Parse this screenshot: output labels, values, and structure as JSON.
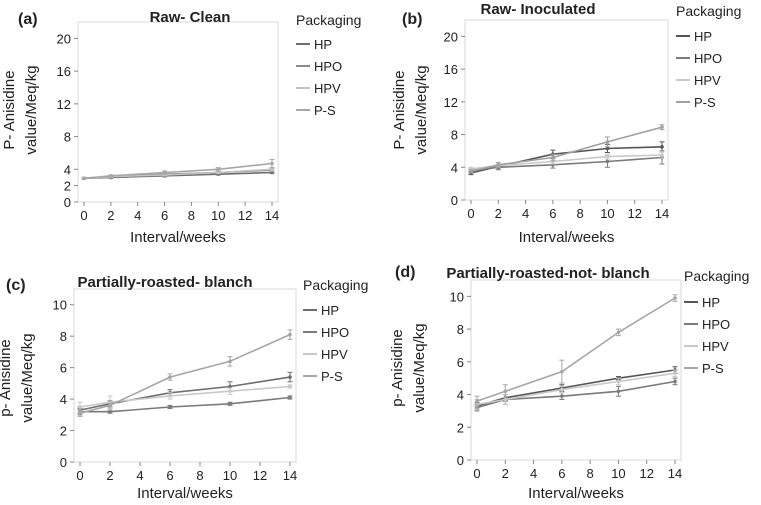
{
  "chart_data": [
    {
      "type": "line",
      "panel_label": "(a)",
      "title": "Raw- Clean",
      "xlabel": "Interval/weeks",
      "ylabel_line1": "P- Anisidine",
      "ylabel_line2": "value/Meq/kg",
      "ylim": [
        0,
        22
      ],
      "yticks": [
        0,
        4,
        8,
        12,
        16,
        20
      ],
      "yticks_extra": [
        2
      ],
      "xticks": [
        0,
        2,
        4,
        6,
        8,
        10,
        12,
        14
      ],
      "x": [
        0,
        2,
        6,
        10,
        14
      ],
      "legend_title": "Packaging",
      "series": [
        {
          "name": "HP",
          "color": "#6e6e6e",
          "values": [
            2.9,
            3.0,
            3.2,
            3.4,
            3.6
          ],
          "err": [
            0.1,
            0.1,
            0.1,
            0.1,
            0.1
          ]
        },
        {
          "name": "HPO",
          "color": "#8c8c8c",
          "values": [
            2.9,
            3.1,
            3.4,
            3.6,
            3.9
          ],
          "err": [
            0.1,
            0.1,
            0.1,
            0.1,
            0.2
          ]
        },
        {
          "name": "HPV",
          "color": "#c2c2c2",
          "values": [
            2.9,
            3.1,
            3.3,
            3.6,
            4.0
          ],
          "err": [
            0.1,
            0.1,
            0.1,
            0.1,
            0.2
          ]
        },
        {
          "name": "P-S",
          "color": "#a6a6a6",
          "values": [
            2.9,
            3.2,
            3.6,
            4.0,
            4.7
          ],
          "err": [
            0.1,
            0.1,
            0.2,
            0.2,
            0.5
          ]
        }
      ]
    },
    {
      "type": "line",
      "panel_label": "(b)",
      "title": "Raw- Inoculated",
      "xlabel": "Interval/weeks",
      "ylabel_line1": "P- Anisidine",
      "ylabel_line2": "value/Meq/kg",
      "ylim": [
        0,
        22
      ],
      "yticks": [
        0,
        4,
        8,
        12,
        16,
        20
      ],
      "yticks_extra": [],
      "xticks": [
        0,
        2,
        4,
        6,
        8,
        10,
        12,
        14
      ],
      "x": [
        0,
        2,
        6,
        10,
        14
      ],
      "legend_title": "Packaging",
      "series": [
        {
          "name": "HP",
          "color": "#555555",
          "values": [
            3.3,
            4.1,
            5.6,
            6.3,
            6.5
          ],
          "err": [
            0.2,
            0.2,
            0.5,
            0.5,
            0.6
          ]
        },
        {
          "name": "HPO",
          "color": "#7a7a7a",
          "values": [
            3.6,
            4.0,
            4.3,
            4.7,
            5.2
          ],
          "err": [
            0.2,
            0.3,
            0.4,
            0.7,
            0.8
          ]
        },
        {
          "name": "HPV",
          "color": "#c8c8c8",
          "values": [
            3.8,
            4.2,
            4.7,
            5.3,
            5.5
          ],
          "err": [
            0.2,
            0.2,
            0.3,
            0.3,
            0.4
          ]
        },
        {
          "name": "P-S",
          "color": "#a0a0a0",
          "values": [
            3.5,
            4.3,
            5.2,
            7.1,
            8.9
          ],
          "err": [
            0.2,
            0.3,
            0.4,
            0.6,
            0.3
          ]
        }
      ]
    },
    {
      "type": "line",
      "panel_label": "(c)",
      "title": "Partially-roasted- blanch",
      "xlabel": "Interval/weeks",
      "ylabel_line1": "p- Anisidine",
      "ylabel_line2": "value/Meq/kg",
      "ylim": [
        0,
        11
      ],
      "yticks": [
        0,
        2,
        4,
        6,
        8,
        10
      ],
      "yticks_extra": [],
      "xticks": [
        0,
        2,
        4,
        6,
        8,
        10,
        12,
        14
      ],
      "x": [
        0,
        2,
        6,
        10,
        14
      ],
      "legend_title": "Packaging",
      "series": [
        {
          "name": "HP",
          "color": "#6e6e6e",
          "values": [
            3.3,
            3.7,
            4.4,
            4.8,
            5.4
          ],
          "err": [
            0.2,
            0.2,
            0.2,
            0.3,
            0.3
          ]
        },
        {
          "name": "HPO",
          "color": "#7a7a7a",
          "values": [
            3.2,
            3.2,
            3.5,
            3.7,
            4.1
          ],
          "err": [
            0.2,
            0.1,
            0.1,
            0.1,
            0.1
          ]
        },
        {
          "name": "HPV",
          "color": "#c8c8c8",
          "values": [
            3.5,
            3.8,
            4.2,
            4.5,
            4.8
          ],
          "err": [
            0.3,
            0.4,
            0.2,
            0.2,
            0.1
          ]
        },
        {
          "name": "P-S",
          "color": "#a6a6a6",
          "values": [
            3.1,
            3.6,
            5.4,
            6.4,
            8.1
          ],
          "err": [
            0.2,
            0.3,
            0.2,
            0.3,
            0.3
          ]
        }
      ]
    },
    {
      "type": "line",
      "panel_label": "(d)",
      "title": "Partially-roasted-not- blanch",
      "xlabel": "Interval/weeks",
      "ylabel_line1": "p- Anisidine",
      "ylabel_line2": "value/Meq/kg",
      "ylim": [
        0,
        11
      ],
      "yticks": [
        0,
        2,
        4,
        6,
        8,
        10
      ],
      "yticks_extra": [],
      "xticks": [
        0,
        2,
        4,
        6,
        8,
        10,
        12,
        14
      ],
      "x": [
        0,
        2,
        6,
        10,
        14
      ],
      "legend_title": "Packaging",
      "series": [
        {
          "name": "HP",
          "color": "#555555",
          "values": [
            3.3,
            3.8,
            4.4,
            5.0,
            5.5
          ],
          "err": [
            0.2,
            0.2,
            0.2,
            0.1,
            0.2
          ]
        },
        {
          "name": "HPO",
          "color": "#7a7a7a",
          "values": [
            3.2,
            3.7,
            3.9,
            4.2,
            4.8
          ],
          "err": [
            0.2,
            0.3,
            0.2,
            0.3,
            0.2
          ]
        },
        {
          "name": "HPV",
          "color": "#c8c8c8",
          "values": [
            3.4,
            3.7,
            4.3,
            4.8,
            5.3
          ],
          "err": [
            0.3,
            0.3,
            0.2,
            0.2,
            0.2
          ]
        },
        {
          "name": "P-S",
          "color": "#a6a6a6",
          "values": [
            3.6,
            4.2,
            5.4,
            7.8,
            9.9
          ],
          "err": [
            0.3,
            0.4,
            0.7,
            0.2,
            0.2
          ]
        }
      ]
    }
  ]
}
